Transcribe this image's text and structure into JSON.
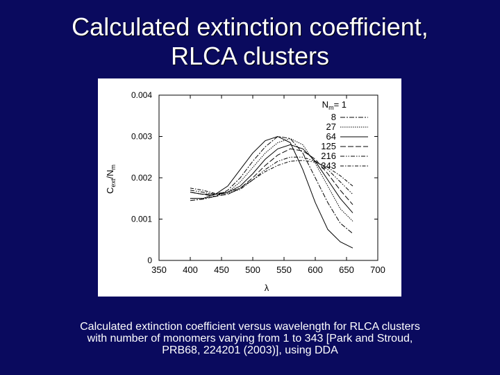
{
  "slide": {
    "title_line1": "Calculated extinction coefficient,",
    "title_line2": "RLCA clusters",
    "caption_line1": "Calculated extinction coefficient versus wavelength for RLCA clusters",
    "caption_line2": "with number of monomers varying from 1 to 343 [Park and Stroud,",
    "caption_line3": "PRB68, 224201 (2003)], using DDA"
  },
  "colors": {
    "background": "#0a0a5e",
    "plot_bg": "#ffffff",
    "line": "#000000"
  },
  "chart_data": {
    "type": "line",
    "title": "",
    "xlabel": "λ",
    "ylabel_main": "C",
    "ylabel_sub1": "ext",
    "ylabel_mid": "/N",
    "ylabel_sub2": "m",
    "xlim": [
      350,
      700
    ],
    "ylim": [
      0,
      0.004
    ],
    "x_ticks": [
      350,
      400,
      450,
      500,
      550,
      600,
      650,
      700
    ],
    "x_tick_labels": [
      "350",
      "400",
      "450",
      "500",
      "550",
      "600",
      "650",
      "700"
    ],
    "y_ticks": [
      0,
      0.001,
      0.002,
      0.003,
      0.004
    ],
    "y_tick_labels": [
      "0",
      "0.001",
      "0.002",
      "0.003",
      "0.004"
    ],
    "grid": false,
    "legend_position": "top-right",
    "legend_title_main": "N",
    "legend_title_sub": "m",
    "legend_title_eq": "= 1",
    "series": [
      {
        "name": "1",
        "dash": "",
        "x": [
          400,
          420,
          440,
          460,
          480,
          500,
          520,
          540,
          560,
          580,
          600,
          620,
          640,
          660
        ],
        "y": [
          0.0015,
          0.0015,
          0.0016,
          0.0018,
          0.0022,
          0.0026,
          0.0029,
          0.003,
          0.00285,
          0.0022,
          0.0014,
          0.00075,
          0.00045,
          0.0003
        ]
      },
      {
        "name": "8",
        "dash": "7 2 2 2",
        "x": [
          400,
          420,
          440,
          460,
          480,
          500,
          520,
          540,
          560,
          580,
          600,
          620,
          640,
          660
        ],
        "y": [
          0.00145,
          0.00148,
          0.00155,
          0.0017,
          0.002,
          0.0024,
          0.00275,
          0.003,
          0.00295,
          0.0026,
          0.002,
          0.0014,
          0.0009,
          0.00065
        ]
      },
      {
        "name": "27",
        "dash": "1.5 1.5",
        "x": [
          400,
          420,
          440,
          460,
          480,
          500,
          520,
          540,
          560,
          580,
          600,
          620,
          640,
          660
        ],
        "y": [
          0.0015,
          0.0015,
          0.00155,
          0.00165,
          0.0019,
          0.00225,
          0.0026,
          0.00285,
          0.00295,
          0.0028,
          0.00235,
          0.0018,
          0.00125,
          0.00095
        ]
      },
      {
        "name": "64",
        "dash": "",
        "x": [
          400,
          420,
          440,
          460,
          480,
          500,
          520,
          540,
          560,
          580,
          600,
          620,
          640,
          660
        ],
        "y": [
          0.00165,
          0.0016,
          0.0016,
          0.00165,
          0.0018,
          0.0021,
          0.00245,
          0.0027,
          0.0028,
          0.0027,
          0.0024,
          0.00195,
          0.0015,
          0.00115
        ]
      },
      {
        "name": "125",
        "dash": "8 3",
        "x": [
          400,
          420,
          440,
          460,
          480,
          500,
          520,
          540,
          560,
          580,
          600,
          620,
          640,
          660
        ],
        "y": [
          0.00165,
          0.0016,
          0.00155,
          0.0016,
          0.00175,
          0.002,
          0.0023,
          0.00255,
          0.0027,
          0.00265,
          0.00245,
          0.0021,
          0.0017,
          0.00135
        ]
      },
      {
        "name": "216",
        "dash": "6 2 1.5 2 1.5 2",
        "x": [
          400,
          420,
          440,
          460,
          480,
          500,
          520,
          540,
          560,
          580,
          600,
          620,
          640,
          660
        ],
        "y": [
          0.0017,
          0.00165,
          0.0016,
          0.00162,
          0.00172,
          0.00195,
          0.0022,
          0.0024,
          0.0025,
          0.0025,
          0.0024,
          0.0022,
          0.0019,
          0.0016
        ]
      },
      {
        "name": "343",
        "dash": "5 2 1.5 2",
        "x": [
          400,
          420,
          440,
          460,
          480,
          500,
          520,
          540,
          560,
          580,
          600,
          620,
          640,
          660
        ],
        "y": [
          0.00175,
          0.0017,
          0.00162,
          0.00165,
          0.00175,
          0.00195,
          0.00215,
          0.0023,
          0.0024,
          0.00242,
          0.00238,
          0.00225,
          0.00205,
          0.0018
        ]
      }
    ]
  }
}
